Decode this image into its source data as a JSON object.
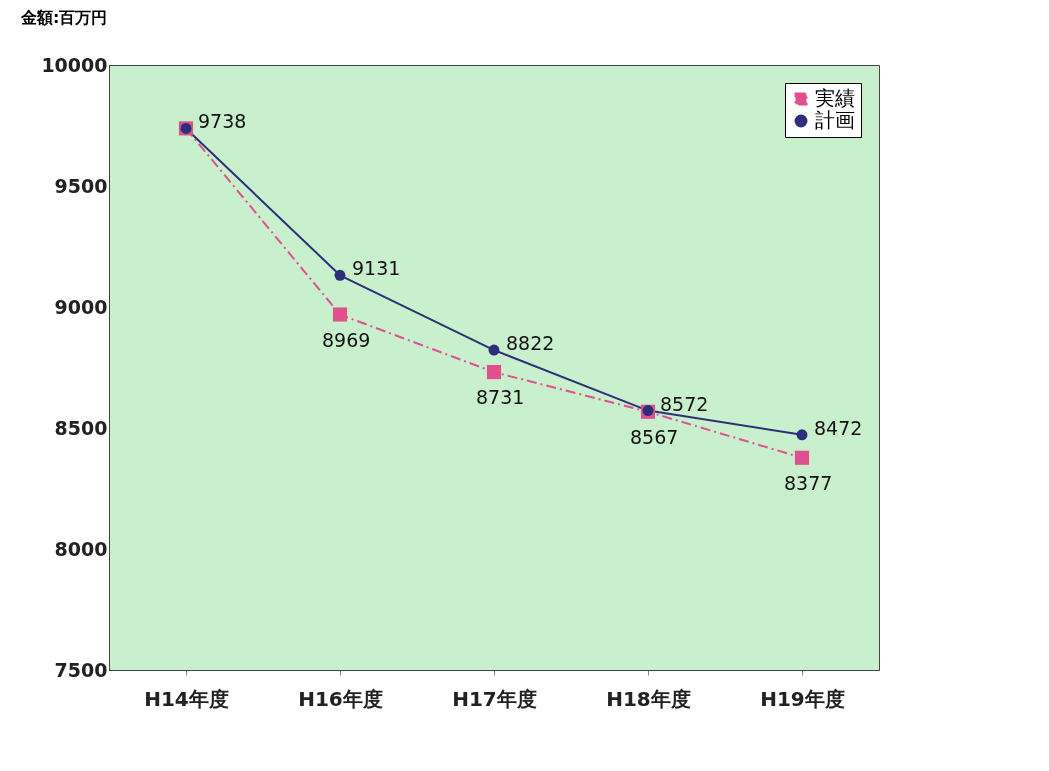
{
  "chart_data": {
    "type": "line",
    "ylabel": "金額:百万円",
    "categories": [
      "H14年度",
      "H16年度",
      "H17年度",
      "H18年度",
      "H19年度"
    ],
    "series": [
      {
        "name": "実績",
        "color": "#e0508f",
        "marker": "square",
        "line_style": "dashed",
        "values": [
          9738,
          8969,
          8731,
          8567,
          8377
        ],
        "value_labels": [
          null,
          "8969",
          "8731",
          "8567",
          "8377"
        ]
      },
      {
        "name": "計画",
        "color": "#2e2f7a",
        "marker": "circle",
        "line_style": "solid",
        "values": [
          9738,
          9131,
          8822,
          8572,
          8472
        ],
        "value_labels": [
          "9738",
          "9131",
          "8822",
          "8572",
          "8472"
        ]
      }
    ],
    "ylim": [
      7500,
      10000
    ],
    "yticks": [
      7500,
      8000,
      8500,
      9000,
      9500,
      10000
    ],
    "grid": false,
    "legend": "top right"
  }
}
